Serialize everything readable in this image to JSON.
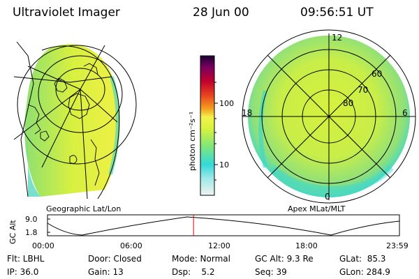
{
  "header": {
    "instrument": "Ultraviolet Imager",
    "date": "28 Jun 00",
    "time": "09:56:51 UT"
  },
  "left_panel": {
    "caption": "Geographic Lat/Lon"
  },
  "right_panel": {
    "caption": "Apex MLat/MLT",
    "mlt_labels": {
      "top": "12",
      "left": "18",
      "right": "6",
      "bottom": "0"
    },
    "lat_labels": [
      "60",
      "70",
      "80"
    ]
  },
  "colorbar": {
    "unit_label": "photon cm⁻²s⁻¹",
    "ticks": [
      "100",
      "10"
    ],
    "colors": [
      "#f2f2f2",
      "#33d9d9",
      "#7fe67a",
      "#d9f23d",
      "#f2f24d",
      "#f5a020",
      "#e84020",
      "#c00030",
      "#7a0060",
      "#1a0033"
    ]
  },
  "timeline": {
    "ylabel": "GC Alt",
    "yticks": [
      "9.0",
      "1.8"
    ],
    "xticks": [
      "00:00",
      "06:00",
      "12:00",
      "18:00",
      "23:59"
    ],
    "current_time_marker_fraction": 0.415
  },
  "info": {
    "flt": "Flt: LBHL",
    "ip": "IP: 36.0",
    "door": "Door: Closed",
    "gain": "Gain: 13",
    "mode": "Mode: Normal",
    "dsp": "Dsp:    5.2",
    "gcalt": "GC Alt: 9.3 Re",
    "seq": "Seq: 39",
    "glat": "GLat:  85.3",
    "glon": "GLon: 284.9"
  }
}
